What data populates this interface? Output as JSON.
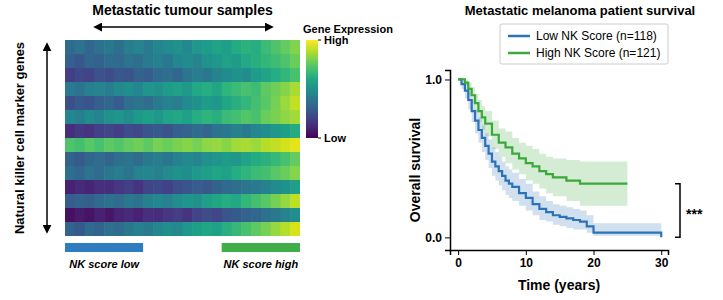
{
  "chart_data": [
    {
      "type": "heatmap",
      "title": "Metastatic tumour samples",
      "y_label": "Natural killer cell marker genes",
      "tick_labels": false,
      "cells": [
        [
          0.34,
          0.38,
          0.33,
          0.37,
          0.4,
          0.36,
          0.42,
          0.45,
          0.41,
          0.46,
          0.48,
          0.5,
          0.47,
          0.53,
          0.55,
          0.58,
          0.56,
          0.61,
          0.64,
          0.62,
          0.68,
          0.72,
          0.76,
          0.81
        ],
        [
          0.3,
          0.27,
          0.33,
          0.31,
          0.35,
          0.34,
          0.38,
          0.36,
          0.41,
          0.43,
          0.4,
          0.46,
          0.48,
          0.45,
          0.51,
          0.53,
          0.57,
          0.55,
          0.6,
          0.63,
          0.66,
          0.69,
          0.72,
          0.77
        ],
        [
          0.18,
          0.22,
          0.2,
          0.25,
          0.23,
          0.27,
          0.26,
          0.31,
          0.29,
          0.34,
          0.36,
          0.33,
          0.39,
          0.42,
          0.4,
          0.45,
          0.48,
          0.51,
          0.49,
          0.55,
          0.58,
          0.62,
          0.66,
          0.71
        ],
        [
          0.41,
          0.38,
          0.43,
          0.45,
          0.42,
          0.47,
          0.49,
          0.46,
          0.52,
          0.5,
          0.55,
          0.57,
          0.54,
          0.6,
          0.62,
          0.59,
          0.65,
          0.68,
          0.71,
          0.69,
          0.75,
          0.78,
          0.82,
          0.87
        ],
        [
          0.24,
          0.28,
          0.26,
          0.3,
          0.33,
          0.29,
          0.36,
          0.38,
          0.35,
          0.41,
          0.44,
          0.42,
          0.48,
          0.51,
          0.55,
          0.53,
          0.59,
          0.63,
          0.66,
          0.7,
          0.74,
          0.79,
          0.85,
          0.91
        ],
        [
          0.46,
          0.43,
          0.48,
          0.45,
          0.5,
          0.52,
          0.49,
          0.54,
          0.56,
          0.53,
          0.58,
          0.6,
          0.57,
          0.62,
          0.65,
          0.63,
          0.68,
          0.7,
          0.73,
          0.71,
          0.77,
          0.8,
          0.83,
          0.86
        ],
        [
          0.14,
          0.17,
          0.15,
          0.19,
          0.21,
          0.18,
          0.23,
          0.22,
          0.26,
          0.28,
          0.25,
          0.3,
          0.32,
          0.35,
          0.33,
          0.38,
          0.4,
          0.43,
          0.41,
          0.46,
          0.49,
          0.53,
          0.56,
          0.61
        ],
        [
          0.72,
          0.7,
          0.74,
          0.71,
          0.75,
          0.73,
          0.76,
          0.78,
          0.75,
          0.79,
          0.77,
          0.8,
          0.82,
          0.79,
          0.83,
          0.84,
          0.82,
          0.86,
          0.87,
          0.85,
          0.89,
          0.91,
          0.93,
          0.96
        ],
        [
          0.31,
          0.28,
          0.33,
          0.35,
          0.32,
          0.36,
          0.38,
          0.35,
          0.4,
          0.42,
          0.39,
          0.44,
          0.47,
          0.45,
          0.5,
          0.52,
          0.55,
          0.53,
          0.58,
          0.61,
          0.64,
          0.67,
          0.71,
          0.76
        ],
        [
          0.36,
          0.33,
          0.38,
          0.35,
          0.4,
          0.42,
          0.39,
          0.44,
          0.46,
          0.43,
          0.48,
          0.51,
          0.49,
          0.54,
          0.56,
          0.59,
          0.57,
          0.62,
          0.65,
          0.68,
          0.7,
          0.74,
          0.77,
          0.82
        ],
        [
          0.09,
          0.12,
          0.1,
          0.14,
          0.13,
          0.16,
          0.18,
          0.15,
          0.2,
          0.22,
          0.19,
          0.24,
          0.26,
          0.29,
          0.27,
          0.31,
          0.34,
          0.36,
          0.39,
          0.41,
          0.44,
          0.48,
          0.51,
          0.56
        ],
        [
          0.29,
          0.32,
          0.3,
          0.34,
          0.37,
          0.35,
          0.4,
          0.38,
          0.43,
          0.46,
          0.44,
          0.49,
          0.52,
          0.5,
          0.56,
          0.59,
          0.62,
          0.6,
          0.66,
          0.7,
          0.74,
          0.79,
          0.84,
          0.9
        ],
        [
          0.04,
          0.07,
          0.05,
          0.09,
          0.06,
          0.1,
          0.12,
          0.09,
          0.14,
          0.13,
          0.16,
          0.18,
          0.15,
          0.2,
          0.23,
          0.21,
          0.26,
          0.28,
          0.31,
          0.33,
          0.37,
          0.4,
          0.44,
          0.49
        ],
        [
          0.31,
          0.28,
          0.34,
          0.32,
          0.37,
          0.35,
          0.4,
          0.43,
          0.41,
          0.46,
          0.49,
          0.47,
          0.53,
          0.56,
          0.59,
          0.57,
          0.63,
          0.67,
          0.71,
          0.75,
          0.79,
          0.84,
          0.89,
          0.94
        ]
      ],
      "colorbar": {
        "title": "Gene Expression",
        "range": [
          0,
          1
        ],
        "ticks": [
          {
            "value": 0,
            "label": "Low"
          },
          {
            "value": 1,
            "label": "High"
          }
        ]
      },
      "groups": [
        {
          "name": "NK score low",
          "color": "#2f7dc1",
          "start": 0,
          "end": 8
        },
        {
          "name": null,
          "color": "#ffffff",
          "start": 8,
          "end": 16
        },
        {
          "name": "NK score high",
          "color": "#3fae49",
          "start": 16,
          "end": 24
        }
      ]
    },
    {
      "type": "line",
      "title": "Metastatic melanoma patient survival",
      "x_label": "Time (years)",
      "y_label": "Overall survival",
      "line_style": "step",
      "legend": "upper right",
      "xlim": [
        -1.2,
        31
      ],
      "xticks": [
        0,
        10,
        20,
        30
      ],
      "ylim": [
        -0.08,
        1.06
      ],
      "yticks": [
        {
          "value": 0,
          "label": "0.0"
        },
        {
          "value": 1,
          "label": "1.0"
        }
      ],
      "series": [
        {
          "name": "Low NK Score (n=118)",
          "color": "#2c72b8",
          "x": [
            0,
            0.5,
            1,
            1.5,
            2,
            2.5,
            3,
            3.5,
            4,
            4.5,
            5,
            5.5,
            6,
            6.5,
            7,
            7.5,
            8,
            9,
            10,
            11,
            12,
            13,
            14,
            15,
            16,
            17,
            18,
            19,
            20,
            22,
            26,
            30
          ],
          "values": [
            1.0,
            0.97,
            0.93,
            0.87,
            0.8,
            0.74,
            0.68,
            0.63,
            0.58,
            0.53,
            0.48,
            0.45,
            0.42,
            0.39,
            0.36,
            0.34,
            0.32,
            0.28,
            0.25,
            0.21,
            0.18,
            0.16,
            0.14,
            0.13,
            0.12,
            0.11,
            0.1,
            0.07,
            0.03,
            0.03,
            0.03,
            0.0
          ],
          "lower": [
            1.0,
            0.94,
            0.88,
            0.81,
            0.73,
            0.66,
            0.6,
            0.54,
            0.49,
            0.44,
            0.39,
            0.36,
            0.33,
            0.3,
            0.27,
            0.25,
            0.23,
            0.2,
            0.17,
            0.14,
            0.11,
            0.1,
            0.08,
            0.07,
            0.06,
            0.05,
            0.05,
            0.03,
            0.01,
            0.01,
            0.01,
            0.0
          ],
          "upper": [
            1.0,
            0.99,
            0.97,
            0.92,
            0.87,
            0.81,
            0.76,
            0.71,
            0.66,
            0.62,
            0.57,
            0.54,
            0.51,
            0.48,
            0.45,
            0.43,
            0.41,
            0.37,
            0.34,
            0.29,
            0.26,
            0.23,
            0.21,
            0.2,
            0.19,
            0.18,
            0.17,
            0.14,
            0.09,
            0.09,
            0.09,
            0.0
          ]
        },
        {
          "name": "High NK Score (n=121)",
          "color": "#3aa83a",
          "x": [
            0,
            1,
            1.5,
            2,
            2.5,
            3,
            3.5,
            4,
            5,
            6,
            7,
            8,
            9,
            10,
            11,
            12,
            13,
            14,
            16,
            18,
            25
          ],
          "values": [
            1.0,
            0.98,
            0.94,
            0.9,
            0.85,
            0.8,
            0.76,
            0.72,
            0.65,
            0.6,
            0.57,
            0.53,
            0.5,
            0.47,
            0.45,
            0.42,
            0.4,
            0.38,
            0.36,
            0.34,
            0.34
          ],
          "lower": [
            1.0,
            0.96,
            0.9,
            0.85,
            0.79,
            0.73,
            0.68,
            0.64,
            0.56,
            0.51,
            0.47,
            0.43,
            0.4,
            0.36,
            0.34,
            0.31,
            0.28,
            0.26,
            0.23,
            0.2,
            0.2
          ],
          "upper": [
            1.0,
            1.0,
            0.98,
            0.95,
            0.91,
            0.87,
            0.83,
            0.8,
            0.74,
            0.69,
            0.67,
            0.63,
            0.6,
            0.58,
            0.56,
            0.53,
            0.51,
            0.5,
            0.49,
            0.48,
            0.48
          ]
        }
      ],
      "annotations": [
        {
          "text": "***"
        }
      ]
    }
  ]
}
